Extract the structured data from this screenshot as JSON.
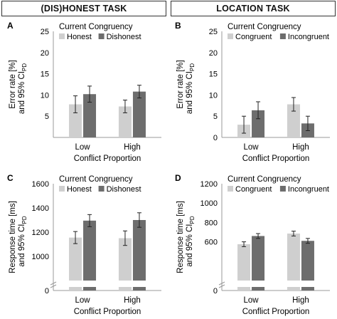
{
  "headers": {
    "left": "(DIS)HONEST TASK",
    "right": "LOCATION TASK"
  },
  "colors": {
    "light_bar": "#cfcfcf",
    "dark_bar": "#6d6d6d",
    "axis": "#999999",
    "error_bar": "#222222"
  },
  "chart_data": [
    {
      "panel": "A",
      "type": "bar",
      "title": "Current Congruency",
      "categories": [
        "Low",
        "High"
      ],
      "xlabel": "Conflict Proportion",
      "ylabel": [
        "Error rate [%]",
        "and 95% CI",
        "PD"
      ],
      "ylim": [
        0,
        25
      ],
      "yticks": [
        0,
        5,
        10,
        15,
        20,
        25
      ],
      "tick_labels": [
        "",
        "5",
        "10",
        "15",
        "20",
        "25"
      ],
      "axis_break": false,
      "series": [
        {
          "name": "Honest",
          "values": [
            7.8,
            7.3
          ],
          "err": [
            2.0,
            1.5
          ]
        },
        {
          "name": "Dishonest",
          "values": [
            10.2,
            10.8
          ],
          "err": [
            1.9,
            1.5
          ]
        }
      ]
    },
    {
      "panel": "B",
      "type": "bar",
      "title": "Current Congruency",
      "categories": [
        "Low",
        "High"
      ],
      "xlabel": "Conflict Proportion",
      "ylabel": [
        "Error rate [%]",
        "and 95% CI",
        "PD"
      ],
      "ylim": [
        0,
        25
      ],
      "yticks": [
        0,
        5,
        10,
        15,
        20,
        25
      ],
      "tick_labels": [
        "0",
        "5",
        "10",
        "15",
        "20",
        "25"
      ],
      "axis_break": false,
      "series": [
        {
          "name": "Congruent",
          "values": [
            3.0,
            7.8
          ],
          "err": [
            2.0,
            1.6
          ]
        },
        {
          "name": "Incongruent",
          "values": [
            6.4,
            3.3
          ],
          "err": [
            2.0,
            1.7
          ]
        }
      ]
    },
    {
      "panel": "C",
      "type": "bar",
      "title": "Current Congruency",
      "categories": [
        "Low",
        "High"
      ],
      "xlabel": "Conflict Proportion",
      "ylabel": [
        "Response time [ms]",
        "and 95% CI",
        "PD"
      ],
      "ylim": [
        800,
        1600
      ],
      "yticks": [
        1000,
        1200,
        1400,
        1600
      ],
      "tick_labels": [
        "1000",
        "1200",
        "1400",
        "1600"
      ],
      "axis_break": true,
      "tick_zero_label": "0",
      "series": [
        {
          "name": "Honest",
          "values": [
            1155,
            1150
          ],
          "err": [
            50,
            60
          ]
        },
        {
          "name": "Dishonest",
          "values": [
            1295,
            1300
          ],
          "err": [
            50,
            60
          ]
        }
      ]
    },
    {
      "panel": "D",
      "type": "bar",
      "title": "Current Congruency",
      "categories": [
        "Low",
        "High"
      ],
      "xlabel": "Conflict Proportion",
      "ylabel": [
        "Response time [ms]",
        "and 95% CI",
        "PD"
      ],
      "ylim": [
        200,
        1200
      ],
      "yticks": [
        600,
        800,
        1000,
        1200
      ],
      "tick_labels": [
        "600",
        "800",
        "1000",
        "1200"
      ],
      "axis_break": true,
      "tick_zero_label": "0",
      "series": [
        {
          "name": "Congruent",
          "values": [
            575,
            685
          ],
          "err": [
            25,
            25
          ]
        },
        {
          "name": "Incongruent",
          "values": [
            660,
            610
          ],
          "err": [
            25,
            25
          ]
        }
      ]
    }
  ]
}
